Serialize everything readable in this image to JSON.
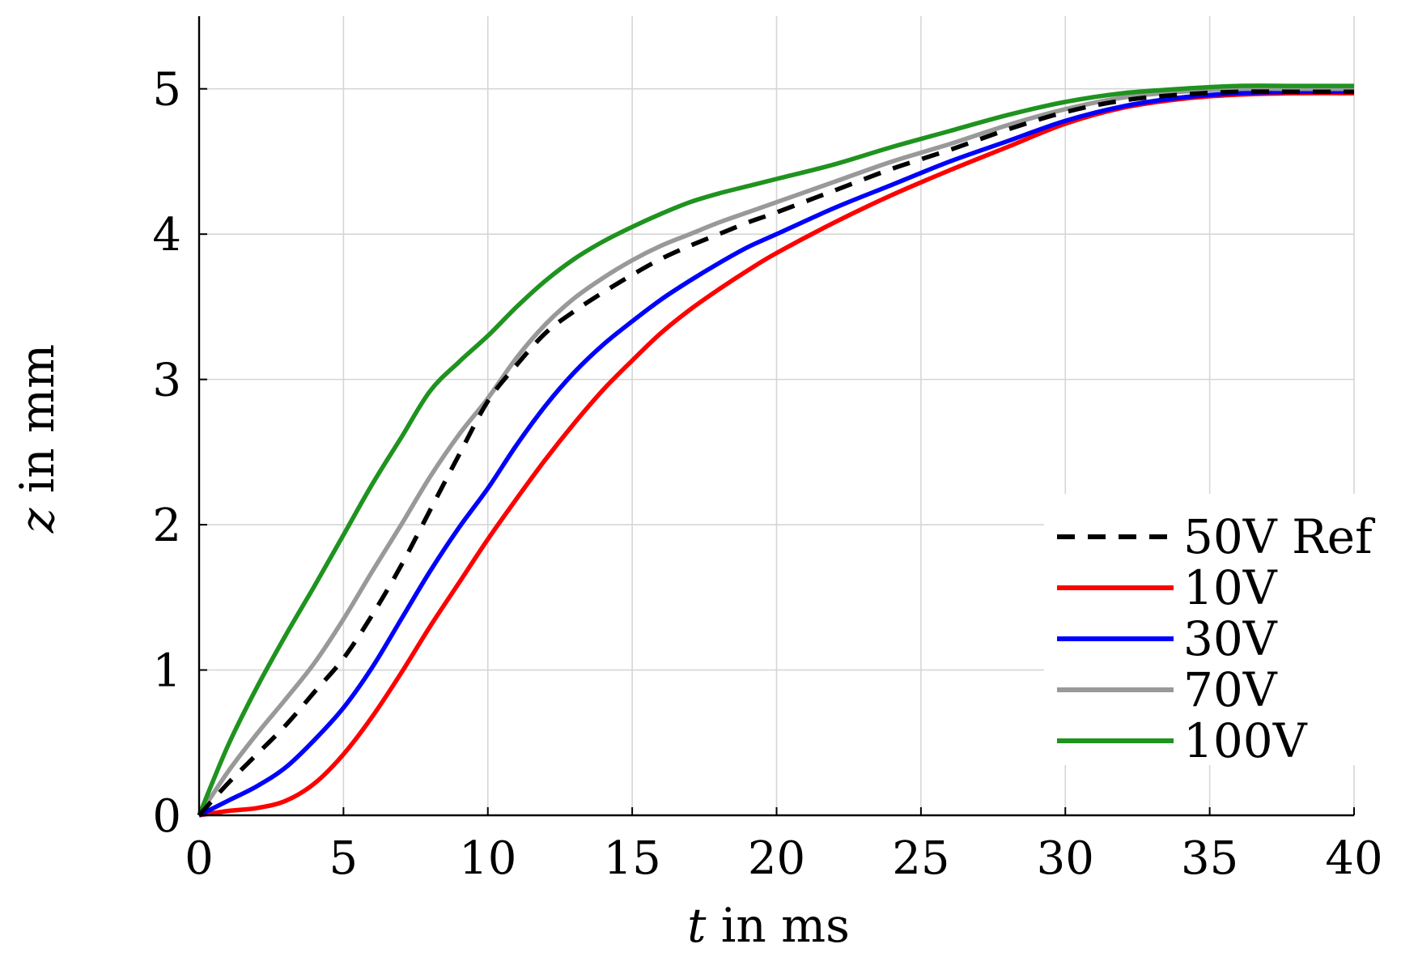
{
  "chart_data": {
    "type": "line",
    "title": "",
    "xlabel_var": "t",
    "xlabel_rest": " in ms",
    "ylabel_var": "z",
    "ylabel_rest": " in mm",
    "xlim": [
      0,
      40
    ],
    "ylim": [
      0,
      5.5
    ],
    "xticks": [
      0,
      5,
      10,
      15,
      20,
      25,
      30,
      35,
      40
    ],
    "yticks": [
      0,
      1,
      2,
      3,
      4,
      5
    ],
    "grid": true,
    "legend_position": "right",
    "x": [
      0,
      1,
      2,
      3,
      4,
      5,
      6,
      7,
      8,
      9,
      10,
      11,
      12,
      13,
      14,
      15,
      16,
      17,
      18,
      19,
      20,
      22,
      24,
      26,
      28,
      30,
      32,
      34,
      36,
      38,
      40
    ],
    "series": [
      {
        "name": "50V Ref",
        "color": "#000000",
        "dash": true,
        "values": [
          0,
          0.22,
          0.42,
          0.62,
          0.85,
          1.08,
          1.38,
          1.72,
          2.1,
          2.48,
          2.85,
          3.1,
          3.32,
          3.47,
          3.6,
          3.72,
          3.83,
          3.92,
          4.0,
          4.08,
          4.15,
          4.3,
          4.45,
          4.58,
          4.72,
          4.84,
          4.92,
          4.96,
          4.98,
          4.98,
          4.98
        ]
      },
      {
        "name": "10V",
        "color": "#ff0000",
        "dash": false,
        "values": [
          0,
          0.03,
          0.05,
          0.1,
          0.22,
          0.42,
          0.68,
          0.98,
          1.3,
          1.6,
          1.9,
          2.18,
          2.45,
          2.7,
          2.93,
          3.13,
          3.32,
          3.48,
          3.62,
          3.75,
          3.87,
          4.08,
          4.27,
          4.44,
          4.6,
          4.76,
          4.87,
          4.93,
          4.96,
          4.97,
          4.97
        ]
      },
      {
        "name": "30V",
        "color": "#0000ff",
        "dash": false,
        "values": [
          0,
          0.1,
          0.2,
          0.33,
          0.52,
          0.74,
          1.02,
          1.35,
          1.68,
          1.98,
          2.25,
          2.55,
          2.82,
          3.05,
          3.24,
          3.4,
          3.55,
          3.68,
          3.8,
          3.91,
          4.0,
          4.18,
          4.34,
          4.5,
          4.64,
          4.78,
          4.88,
          4.94,
          4.97,
          4.98,
          4.98
        ]
      },
      {
        "name": "70V",
        "color": "#999999",
        "dash": false,
        "values": [
          0,
          0.3,
          0.56,
          0.8,
          1.05,
          1.35,
          1.68,
          2.0,
          2.33,
          2.62,
          2.87,
          3.15,
          3.38,
          3.56,
          3.7,
          3.82,
          3.92,
          4.0,
          4.08,
          4.15,
          4.22,
          4.36,
          4.5,
          4.62,
          4.75,
          4.86,
          4.94,
          4.98,
          5.0,
          5.0,
          5.0
        ]
      },
      {
        "name": "100V",
        "color": "#1f931f",
        "dash": false,
        "values": [
          0,
          0.48,
          0.88,
          1.24,
          1.58,
          1.93,
          2.28,
          2.6,
          2.92,
          3.12,
          3.3,
          3.5,
          3.68,
          3.83,
          3.95,
          4.05,
          4.14,
          4.22,
          4.28,
          4.33,
          4.38,
          4.48,
          4.6,
          4.71,
          4.82,
          4.91,
          4.97,
          5.0,
          5.02,
          5.02,
          5.02
        ]
      }
    ]
  }
}
